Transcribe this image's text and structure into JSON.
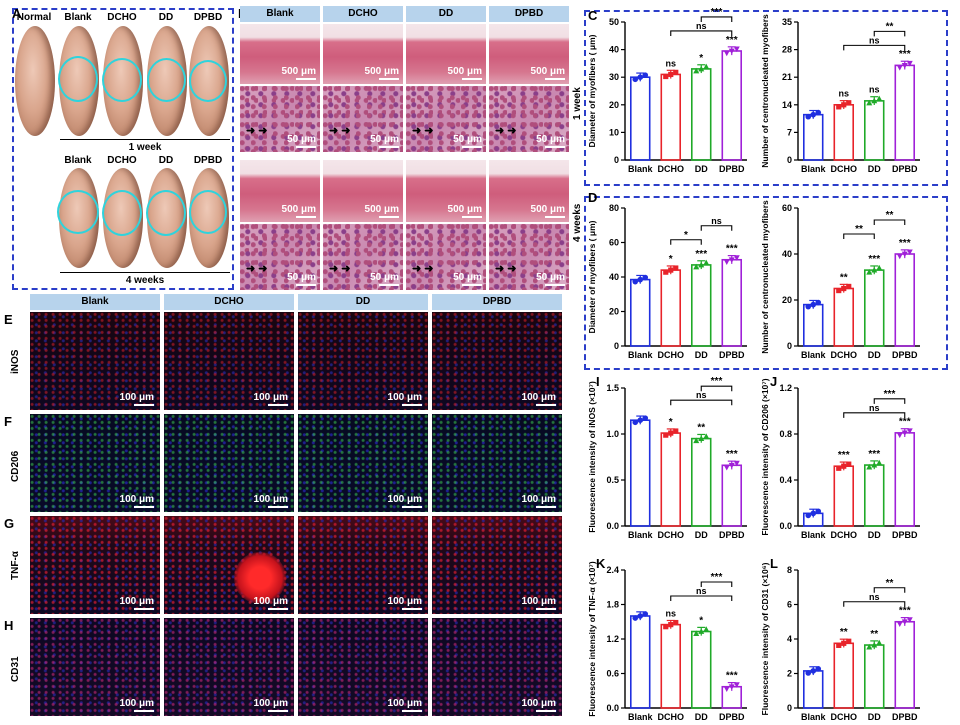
{
  "panel_letters": {
    "A": "A",
    "B": "B",
    "C": "C",
    "D": "D",
    "E": "E",
    "F": "F",
    "G": "G",
    "H": "H",
    "I": "I",
    "J": "J",
    "K": "K",
    "L": "L"
  },
  "panelA": {
    "row1_labels": [
      "Normal",
      "Blank",
      "DCHO",
      "DD",
      "DPBD"
    ],
    "row2_labels": [
      "Blank",
      "DCHO",
      "DD",
      "DPBD"
    ],
    "week1": "1 week",
    "week4": "4 weeks"
  },
  "panelB": {
    "headers": [
      "Blank",
      "DCHO",
      "DD",
      "DPBD"
    ],
    "row_labels": [
      "1 week",
      "4 weeks"
    ],
    "scale_500": "500 μm",
    "scale_50": "50 μm"
  },
  "fluor": {
    "headers": [
      "Blank",
      "DCHO",
      "DD",
      "DPBD"
    ],
    "rows": [
      "iNOS",
      "CD206",
      "TNF-α",
      "CD31"
    ],
    "scale": "100 μm"
  },
  "groups": [
    "Blank",
    "DCHO",
    "DD",
    "DPBD"
  ],
  "colors": {
    "Blank": "#1f2fe0",
    "DCHO": "#e8232a",
    "DD": "#1faa28",
    "DPBD": "#a020d8",
    "frame": "#2b3ec9",
    "header": "#b7d3ec"
  },
  "chart_data": [
    {
      "id": "C_left",
      "type": "bar",
      "ylabel": "Diameter of myofibers ( μm)",
      "categories": [
        "Blank",
        "DCHO",
        "DD",
        "DPBD"
      ],
      "values": [
        30,
        31,
        33,
        39.5
      ],
      "ylim": [
        0,
        50
      ],
      "yticks": [
        0,
        10,
        20,
        30,
        40,
        50
      ],
      "sig": [
        "",
        "ns",
        "*",
        "***"
      ],
      "brackets": [
        {
          "from": 1,
          "to": 3,
          "label": "ns",
          "level": 0
        },
        {
          "from": 2,
          "to": 3,
          "label": "***",
          "level": 1
        }
      ]
    },
    {
      "id": "C_right",
      "type": "bar",
      "ylabel": "Number of centronucleated myofibers",
      "categories": [
        "Blank",
        "DCHO",
        "DD",
        "DPBD"
      ],
      "values": [
        11.5,
        14,
        15,
        24
      ],
      "ylim": [
        0,
        35
      ],
      "yticks": [
        0,
        7,
        14,
        21,
        28,
        35
      ],
      "sig": [
        "",
        "ns",
        "ns",
        "***"
      ],
      "brackets": [
        {
          "from": 1,
          "to": 3,
          "label": "ns",
          "level": 0
        },
        {
          "from": 2,
          "to": 3,
          "label": "**",
          "level": 1
        }
      ]
    },
    {
      "id": "D_left",
      "type": "bar",
      "ylabel": "Diameter of myofibers ( μm)",
      "categories": [
        "Blank",
        "DCHO",
        "DD",
        "DPBD"
      ],
      "values": [
        38.5,
        44,
        47,
        50
      ],
      "ylim": [
        0,
        80
      ],
      "yticks": [
        0,
        20,
        40,
        60,
        80
      ],
      "sig": [
        "",
        "*",
        "***",
        "***"
      ],
      "brackets": [
        {
          "from": 1,
          "to": 2,
          "label": "*",
          "level": 0
        },
        {
          "from": 2,
          "to": 3,
          "label": "ns",
          "level": 1
        }
      ]
    },
    {
      "id": "D_right",
      "type": "bar",
      "ylabel": "Number of centronucleated myofibers",
      "categories": [
        "Blank",
        "DCHO",
        "DD",
        "DPBD"
      ],
      "values": [
        18,
        25,
        33,
        40
      ],
      "ylim": [
        0,
        60
      ],
      "yticks": [
        0,
        20,
        40,
        60
      ],
      "sig": [
        "",
        "**",
        "***",
        "***"
      ],
      "brackets": [
        {
          "from": 1,
          "to": 2,
          "label": "**",
          "level": 0
        },
        {
          "from": 2,
          "to": 3,
          "label": "**",
          "level": 1
        }
      ]
    },
    {
      "id": "I",
      "type": "bar",
      "ylabel": "Fluorescence intensity of iNOS (×10⁷)",
      "categories": [
        "Blank",
        "DCHO",
        "DD",
        "DPBD"
      ],
      "values": [
        1.15,
        1.01,
        0.95,
        0.66
      ],
      "ylim": [
        0,
        1.5
      ],
      "yticks": [
        0.0,
        0.5,
        1.0,
        1.5
      ],
      "sig": [
        "",
        "*",
        "**",
        "***"
      ],
      "brackets": [
        {
          "from": 1,
          "to": 3,
          "label": "ns",
          "level": 0
        },
        {
          "from": 2,
          "to": 3,
          "label": "***",
          "level": 1
        }
      ]
    },
    {
      "id": "J",
      "type": "bar",
      "ylabel": "Fluorescence intensity of CD206 (×10⁷)",
      "categories": [
        "Blank",
        "DCHO",
        "DD",
        "DPBD"
      ],
      "values": [
        0.11,
        0.52,
        0.53,
        0.81
      ],
      "ylim": [
        0,
        1.2
      ],
      "yticks": [
        0.0,
        0.4,
        0.8,
        1.2
      ],
      "sig": [
        "",
        "***",
        "***",
        "***"
      ],
      "brackets": [
        {
          "from": 1,
          "to": 3,
          "label": "ns",
          "level": 0
        },
        {
          "from": 2,
          "to": 3,
          "label": "***",
          "level": 1
        }
      ]
    },
    {
      "id": "K",
      "type": "bar",
      "ylabel": "Fluorescence intensity of TNF-α (×10⁷)",
      "categories": [
        "Blank",
        "DCHO",
        "DD",
        "DPBD"
      ],
      "values": [
        1.6,
        1.45,
        1.33,
        0.37
      ],
      "ylim": [
        0,
        2.4
      ],
      "yticks": [
        0.0,
        0.6,
        1.2,
        1.8,
        2.4
      ],
      "sig": [
        "",
        "ns",
        "*",
        "***"
      ],
      "brackets": [
        {
          "from": 1,
          "to": 3,
          "label": "ns",
          "level": 0
        },
        {
          "from": 2,
          "to": 3,
          "label": "***",
          "level": 1
        }
      ]
    },
    {
      "id": "L",
      "type": "bar",
      "ylabel": "Fluorescence intensity of CD31 (×10⁶)",
      "categories": [
        "Blank",
        "DCHO",
        "DD",
        "DPBD"
      ],
      "values": [
        2.15,
        3.75,
        3.65,
        5.0
      ],
      "ylim": [
        0,
        8
      ],
      "yticks": [
        0,
        2,
        4,
        6,
        8
      ],
      "sig": [
        "",
        "**",
        "**",
        "***"
      ],
      "brackets": [
        {
          "from": 1,
          "to": 3,
          "label": "ns",
          "level": 0
        },
        {
          "from": 2,
          "to": 3,
          "label": "**",
          "level": 1
        }
      ]
    }
  ]
}
